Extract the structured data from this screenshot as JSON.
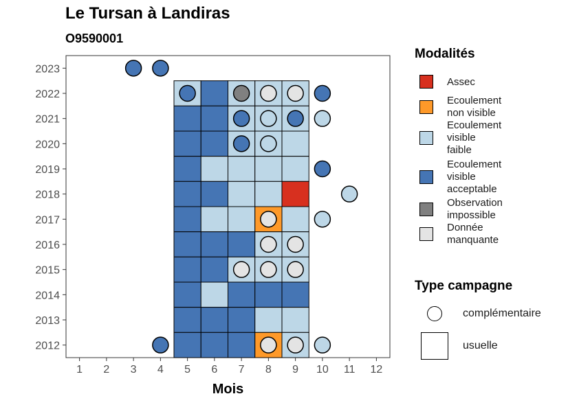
{
  "header": {
    "title": "Le Tursan à Landiras",
    "subtitle": "O9590001"
  },
  "legend": {
    "modalites_title": "Modalités",
    "type_title": "Type campagne",
    "modalites": [
      {
        "key": "assec",
        "lines": [
          "Assec"
        ],
        "color": "#d7301f"
      },
      {
        "key": "ecoulement_non_visible",
        "lines": [
          "Ecoulement",
          "non visible"
        ],
        "color": "#fe9929"
      },
      {
        "key": "ecoulement_visible_faible",
        "lines": [
          "Ecoulement",
          "visible",
          "faible"
        ],
        "color": "#bdd7e7"
      },
      {
        "key": "ecoulement_visible_acceptable",
        "lines": [
          "Ecoulement",
          "visible",
          "acceptable"
        ],
        "color": "#4575b4"
      },
      {
        "key": "observation_impossible",
        "lines": [
          "Observation",
          "impossible"
        ],
        "color": "#808080"
      },
      {
        "key": "donnee_manquante",
        "lines": [
          "Donnée",
          "manquante"
        ],
        "color": "#e4e4e4"
      }
    ],
    "types": [
      {
        "key": "complementaire",
        "label": "complémentaire"
      },
      {
        "key": "usuelle",
        "label": "usuelle"
      }
    ]
  },
  "chart_data": {
    "type": "heatmap",
    "title": "Le Tursan à Landiras",
    "subtitle": "O9590001",
    "xlabel": "Mois",
    "ylabel": "",
    "x_ticks": [
      1,
      2,
      3,
      4,
      5,
      6,
      7,
      8,
      9,
      10,
      11,
      12
    ],
    "y_ticks": [
      2012,
      2013,
      2014,
      2015,
      2016,
      2017,
      2018,
      2019,
      2020,
      2021,
      2022,
      2023
    ],
    "xlim": [
      0.5,
      12.5
    ],
    "ylim": [
      2011.5,
      2023.5
    ],
    "usuelle": [
      {
        "year": 2022,
        "month": 5,
        "modalite": "ecoulement_visible_faible"
      },
      {
        "year": 2022,
        "month": 6,
        "modalite": "ecoulement_visible_acceptable"
      },
      {
        "year": 2022,
        "month": 7,
        "modalite": "ecoulement_visible_faible"
      },
      {
        "year": 2022,
        "month": 8,
        "modalite": "ecoulement_visible_faible"
      },
      {
        "year": 2022,
        "month": 9,
        "modalite": "ecoulement_visible_faible"
      },
      {
        "year": 2021,
        "month": 5,
        "modalite": "ecoulement_visible_acceptable"
      },
      {
        "year": 2021,
        "month": 6,
        "modalite": "ecoulement_visible_acceptable"
      },
      {
        "year": 2021,
        "month": 7,
        "modalite": "ecoulement_visible_faible"
      },
      {
        "year": 2021,
        "month": 8,
        "modalite": "ecoulement_visible_faible"
      },
      {
        "year": 2021,
        "month": 9,
        "modalite": "ecoulement_visible_faible"
      },
      {
        "year": 2020,
        "month": 5,
        "modalite": "ecoulement_visible_acceptable"
      },
      {
        "year": 2020,
        "month": 6,
        "modalite": "ecoulement_visible_acceptable"
      },
      {
        "year": 2020,
        "month": 7,
        "modalite": "ecoulement_visible_faible"
      },
      {
        "year": 2020,
        "month": 8,
        "modalite": "ecoulement_visible_faible"
      },
      {
        "year": 2020,
        "month": 9,
        "modalite": "ecoulement_visible_faible"
      },
      {
        "year": 2019,
        "month": 5,
        "modalite": "ecoulement_visible_acceptable"
      },
      {
        "year": 2019,
        "month": 6,
        "modalite": "ecoulement_visible_faible"
      },
      {
        "year": 2019,
        "month": 7,
        "modalite": "ecoulement_visible_faible"
      },
      {
        "year": 2019,
        "month": 8,
        "modalite": "ecoulement_visible_faible"
      },
      {
        "year": 2019,
        "month": 9,
        "modalite": "ecoulement_visible_faible"
      },
      {
        "year": 2018,
        "month": 5,
        "modalite": "ecoulement_visible_acceptable"
      },
      {
        "year": 2018,
        "month": 6,
        "modalite": "ecoulement_visible_acceptable"
      },
      {
        "year": 2018,
        "month": 7,
        "modalite": "ecoulement_visible_faible"
      },
      {
        "year": 2018,
        "month": 8,
        "modalite": "ecoulement_visible_faible"
      },
      {
        "year": 2018,
        "month": 9,
        "modalite": "assec"
      },
      {
        "year": 2017,
        "month": 5,
        "modalite": "ecoulement_visible_acceptable"
      },
      {
        "year": 2017,
        "month": 6,
        "modalite": "ecoulement_visible_faible"
      },
      {
        "year": 2017,
        "month": 7,
        "modalite": "ecoulement_visible_faible"
      },
      {
        "year": 2017,
        "month": 8,
        "modalite": "ecoulement_non_visible"
      },
      {
        "year": 2017,
        "month": 9,
        "modalite": "ecoulement_visible_faible"
      },
      {
        "year": 2016,
        "month": 5,
        "modalite": "ecoulement_visible_acceptable"
      },
      {
        "year": 2016,
        "month": 6,
        "modalite": "ecoulement_visible_acceptable"
      },
      {
        "year": 2016,
        "month": 7,
        "modalite": "ecoulement_visible_acceptable"
      },
      {
        "year": 2016,
        "month": 8,
        "modalite": "ecoulement_visible_faible"
      },
      {
        "year": 2016,
        "month": 9,
        "modalite": "ecoulement_visible_faible"
      },
      {
        "year": 2015,
        "month": 5,
        "modalite": "ecoulement_visible_acceptable"
      },
      {
        "year": 2015,
        "month": 6,
        "modalite": "ecoulement_visible_acceptable"
      },
      {
        "year": 2015,
        "month": 7,
        "modalite": "ecoulement_visible_faible"
      },
      {
        "year": 2015,
        "month": 8,
        "modalite": "ecoulement_visible_faible"
      },
      {
        "year": 2015,
        "month": 9,
        "modalite": "ecoulement_visible_faible"
      },
      {
        "year": 2014,
        "month": 5,
        "modalite": "ecoulement_visible_acceptable"
      },
      {
        "year": 2014,
        "month": 6,
        "modalite": "ecoulement_visible_faible"
      },
      {
        "year": 2014,
        "month": 7,
        "modalite": "ecoulement_visible_acceptable"
      },
      {
        "year": 2014,
        "month": 8,
        "modalite": "ecoulement_visible_acceptable"
      },
      {
        "year": 2014,
        "month": 9,
        "modalite": "ecoulement_visible_acceptable"
      },
      {
        "year": 2013,
        "month": 5,
        "modalite": "ecoulement_visible_acceptable"
      },
      {
        "year": 2013,
        "month": 6,
        "modalite": "ecoulement_visible_acceptable"
      },
      {
        "year": 2013,
        "month": 7,
        "modalite": "ecoulement_visible_acceptable"
      },
      {
        "year": 2013,
        "month": 8,
        "modalite": "ecoulement_visible_faible"
      },
      {
        "year": 2013,
        "month": 9,
        "modalite": "ecoulement_visible_faible"
      },
      {
        "year": 2012,
        "month": 5,
        "modalite": "ecoulement_visible_acceptable"
      },
      {
        "year": 2012,
        "month": 6,
        "modalite": "ecoulement_visible_acceptable"
      },
      {
        "year": 2012,
        "month": 7,
        "modalite": "ecoulement_visible_acceptable"
      },
      {
        "year": 2012,
        "month": 8,
        "modalite": "ecoulement_non_visible"
      },
      {
        "year": 2012,
        "month": 9,
        "modalite": "ecoulement_visible_faible"
      }
    ],
    "complementaire": [
      {
        "year": 2023,
        "month": 3,
        "modalite": "ecoulement_visible_acceptable"
      },
      {
        "year": 2023,
        "month": 4,
        "modalite": "ecoulement_visible_acceptable"
      },
      {
        "year": 2022,
        "month": 5,
        "modalite": "ecoulement_visible_acceptable"
      },
      {
        "year": 2022,
        "month": 7,
        "modalite": "observation_impossible"
      },
      {
        "year": 2022,
        "month": 8,
        "modalite": "donnee_manquante"
      },
      {
        "year": 2022,
        "month": 9,
        "modalite": "donnee_manquante"
      },
      {
        "year": 2022,
        "month": 10,
        "modalite": "ecoulement_visible_acceptable"
      },
      {
        "year": 2021,
        "month": 7,
        "modalite": "ecoulement_visible_acceptable"
      },
      {
        "year": 2021,
        "month": 8,
        "modalite": "ecoulement_visible_faible"
      },
      {
        "year": 2021,
        "month": 9,
        "modalite": "ecoulement_visible_acceptable"
      },
      {
        "year": 2021,
        "month": 10,
        "modalite": "ecoulement_visible_faible"
      },
      {
        "year": 2020,
        "month": 7,
        "modalite": "ecoulement_visible_acceptable"
      },
      {
        "year": 2020,
        "month": 8,
        "modalite": "ecoulement_visible_faible"
      },
      {
        "year": 2019,
        "month": 10,
        "modalite": "ecoulement_visible_acceptable"
      },
      {
        "year": 2018,
        "month": 11,
        "modalite": "ecoulement_visible_faible"
      },
      {
        "year": 2017,
        "month": 8,
        "modalite": "donnee_manquante"
      },
      {
        "year": 2017,
        "month": 10,
        "modalite": "ecoulement_visible_faible"
      },
      {
        "year": 2016,
        "month": 8,
        "modalite": "donnee_manquante"
      },
      {
        "year": 2016,
        "month": 9,
        "modalite": "donnee_manquante"
      },
      {
        "year": 2015,
        "month": 7,
        "modalite": "donnee_manquante"
      },
      {
        "year": 2015,
        "month": 8,
        "modalite": "donnee_manquante"
      },
      {
        "year": 2015,
        "month": 9,
        "modalite": "donnee_manquante"
      },
      {
        "year": 2012,
        "month": 4,
        "modalite": "ecoulement_visible_acceptable"
      },
      {
        "year": 2012,
        "month": 8,
        "modalite": "donnee_manquante"
      },
      {
        "year": 2012,
        "month": 9,
        "modalite": "donnee_manquante"
      },
      {
        "year": 2012,
        "month": 10,
        "modalite": "ecoulement_visible_faible"
      }
    ]
  }
}
